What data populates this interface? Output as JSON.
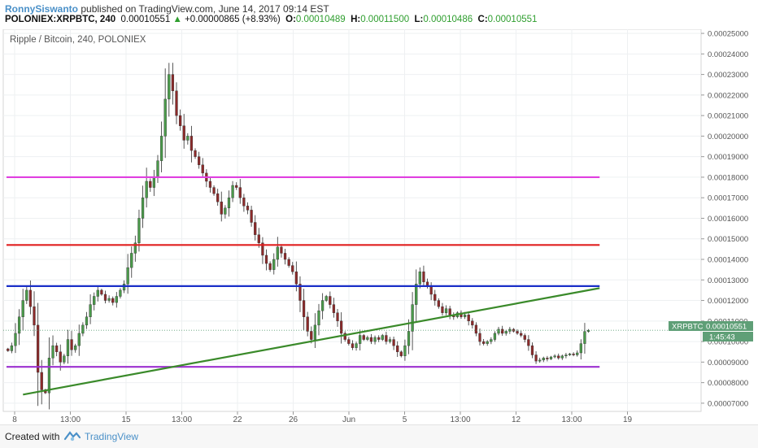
{
  "header": {
    "author": "RonnySiswanto",
    "published": "published on TradingView.com, June 14, 2017 09:14 EST",
    "symbol": "POLONIEX:XRPBTC, 240",
    "last": "0.00010551",
    "change": "+0.00000865 (+8.93%)",
    "o_label": "O:",
    "o_value": "0.00010489",
    "h_label": "H:",
    "h_value": "0.00011500",
    "l_label": "L:",
    "l_value": "0.00010486",
    "c_label": "C:",
    "c_value": "0.00010551"
  },
  "chart_data": {
    "type": "candlestick",
    "title": "Ripple / Bitcoin, 240, POLONIEX",
    "ylim": [
      6.6e-05,
      0.000252
    ],
    "y_ticks": [
      "0.00007000",
      "0.00008000",
      "0.00009000",
      "0.00010000",
      "0.00011000",
      "0.00012000",
      "0.00013000",
      "0.00014000",
      "0.00015000",
      "0.00016000",
      "0.00017000",
      "0.00018000",
      "0.00019000",
      "0.00020000",
      "0.00021000",
      "0.00022000",
      "0.00023000",
      "0.00024000",
      "0.00025000"
    ],
    "x_ticks": [
      "8",
      "13:00",
      "15",
      "13:00",
      "22",
      "26",
      "Jun",
      "5",
      "13:00",
      "12",
      "13:00",
      "19"
    ],
    "x_tick_units": [
      0,
      1,
      2,
      3,
      4,
      5,
      6,
      7,
      8,
      9,
      10,
      11
    ],
    "price_label": {
      "symbol": "XRPBTC",
      "value": "0.00010551",
      "countdown": "1:45:43"
    },
    "horizontal_lines": [
      {
        "price": 0.00018,
        "color": "#e040e0",
        "from": 0.0,
        "to": 10.5
      },
      {
        "price": 0.000147,
        "color": "#e02020",
        "from": 0.0,
        "to": 10.5
      },
      {
        "price": 0.000127,
        "color": "#1a2fc8",
        "from": 0.0,
        "to": 10.5
      },
      {
        "price": 8.77e-05,
        "color": "#9b30d0",
        "from": 0.0,
        "to": 10.5
      }
    ],
    "trendline": {
      "color": "#3a8a2a",
      "from": [
        0.15,
        7.42e-05
      ],
      "to": [
        10.5,
        0.000126
      ]
    },
    "closes": [
      9.55e-05,
      9.8e-05,
      0.000104,
      0.000112,
      0.00012,
      0.000125,
      0.000117,
      0.000108,
      8.5e-05,
      7.65e-05,
      7.5e-05,
      9.2e-05,
      9.8e-05,
      9.5e-05,
      9e-05,
      9.3e-05,
      0.000101,
      9.6e-05,
      9.8e-05,
      0.000104,
      0.000108,
      0.000112,
      0.000118,
      0.000122,
      0.000125,
      0.000123,
      0.00012,
      0.000121,
      0.000119,
      0.000122,
      0.000125,
      0.000128,
      0.000136,
      0.000143,
      0.000148,
      0.00016,
      0.00017,
      0.000178,
      0.000175,
      0.00018,
      0.000188,
      0.0002,
      0.000218,
      0.00023,
      0.000222,
      0.00021,
      0.000205,
      0.000198,
      0.0002,
      0.000193,
      0.00019,
      0.000186,
      0.000182,
      0.000178,
      0.000175,
      0.000172,
      0.000168,
      0.000162,
      0.000165,
      0.00017,
      0.000176,
      0.000175,
      0.00017,
      0.000166,
      0.000164,
      0.000158,
      0.000152,
      0.000148,
      0.000142,
      0.000138,
      0.000135,
      0.00014,
      0.000146,
      0.000143,
      0.00014,
      0.000137,
      0.000134,
      0.000128,
      0.00012,
      0.000112,
      0.000105,
      0.000101,
      0.000108,
      0.000115,
      0.00012,
      0.000122,
      0.000118,
      0.000114,
      0.00011,
      0.000104,
      0.000101,
      9.9e-05,
      9.7e-05,
      9.9e-05,
      0.000103,
      0.000101,
      0.000102,
      0.0001,
      0.000102,
      0.000101,
      0.000103,
      0.0001,
      0.000101,
      9.8e-05,
      9.5e-05,
      9.3e-05,
      9.8e-05,
      0.000105,
      0.000118,
      0.000128,
      0.000134,
      0.000129,
      0.000127,
      0.000123,
      0.00012,
      0.000117,
      0.000114,
      0.000116,
      0.000113,
      0.000112,
      0.000114,
      0.000112,
      0.000113,
      0.00011,
      0.000108,
      0.000104,
      0.0001,
      9.9e-05,
      0.0001,
      0.000101,
      0.000104,
      0.000106,
      0.000104,
      0.000105,
      0.000106,
      0.000105,
      0.000104,
      0.000103,
      0.000101,
      9.8e-05,
      9.35e-05,
      9.05e-05,
      9.1e-05,
      9.2e-05,
      9.15e-05,
      9.25e-05,
      9.3e-05,
      9.2e-05,
      9.3e-05,
      9.35e-05,
      9.4e-05,
      9.35e-05,
      9.45e-05,
      9.9e-05,
      0.0001049,
      0.0001055
    ]
  },
  "footer": {
    "created": "Created with",
    "brand": "TradingView"
  }
}
